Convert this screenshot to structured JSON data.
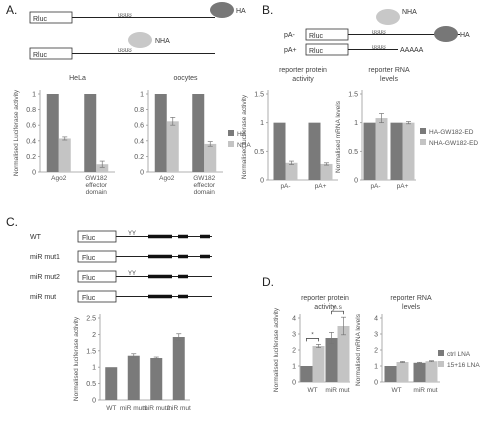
{
  "panels": {
    "A": {
      "label": "A.",
      "constructs": [
        {
          "box": "Rluc",
          "protein": "HA"
        },
        {
          "box": "Rluc",
          "protein": "NHA"
        }
      ]
    },
    "B": {
      "label": "B.",
      "constructs": [
        {
          "name": "pA-",
          "box": "Rluc",
          "protein": "NHA"
        },
        {
          "name": "pA+",
          "box": "Rluc",
          "tail": "AAAAA",
          "protein": "HA"
        }
      ]
    },
    "C": {
      "label": "C.",
      "constructs": [
        {
          "name": "WT",
          "box": "Fluc"
        },
        {
          "name": "miR mut1",
          "box": "Fluc"
        },
        {
          "name": "miR mut2",
          "box": "Fluc"
        },
        {
          "name": "miR mut",
          "box": "Fluc"
        }
      ]
    },
    "D": {
      "label": "D."
    }
  },
  "colors": {
    "dark": "#7a7a7a",
    "light": "#c4c4c4"
  },
  "chart_data": [
    {
      "id": "A1",
      "type": "bar",
      "title": "HeLa",
      "ylabel": "Normalised Luciferase activity",
      "categories": [
        "Ago2",
        "GW182 effector domain"
      ],
      "ylim": [
        0,
        1
      ],
      "yticks": [
        "0",
        "0.2",
        "0.4",
        "0.6",
        "0.8",
        "1"
      ],
      "series": [
        {
          "name": "HA",
          "values": [
            1.0,
            1.0
          ],
          "errors": [
            0,
            0
          ]
        },
        {
          "name": "NHA",
          "values": [
            0.43,
            0.1
          ],
          "errors": [
            0.02,
            0.04
          ]
        }
      ]
    },
    {
      "id": "A2",
      "type": "bar",
      "title": "oocytes",
      "ylabel": "",
      "categories": [
        "Ago2",
        "GW182 effector domain"
      ],
      "ylim": [
        0,
        1
      ],
      "yticks": [
        "0",
        "0.2",
        "0.4",
        "0.6",
        "0.8",
        "1"
      ],
      "legend": [
        "HA",
        "NHA"
      ],
      "series": [
        {
          "name": "HA",
          "values": [
            1.0,
            1.0
          ],
          "errors": [
            0,
            0
          ]
        },
        {
          "name": "NHA",
          "values": [
            0.65,
            0.36
          ],
          "errors": [
            0.05,
            0.03
          ]
        }
      ]
    },
    {
      "id": "B1",
      "type": "bar",
      "title": "reporter protein activity",
      "ylabel": "Normalised luciferase activity",
      "categories": [
        "pA-",
        "pA+"
      ],
      "ylim": [
        0,
        1.5
      ],
      "yticks": [
        "0",
        "0.5",
        "1",
        "1.5"
      ],
      "series": [
        {
          "name": "HA-GW182-ED",
          "values": [
            1.0,
            1.0
          ],
          "errors": [
            0,
            0
          ]
        },
        {
          "name": "NHA-GW182-ED",
          "values": [
            0.3,
            0.28
          ],
          "errors": [
            0.03,
            0.02
          ]
        }
      ]
    },
    {
      "id": "B2",
      "type": "bar",
      "title": "reporter RNA levels",
      "ylabel": "Normalised mRNA levels",
      "categories": [
        "pA-",
        "pA+"
      ],
      "ylim": [
        0,
        1.5
      ],
      "yticks": [
        "0",
        "0.5",
        "1",
        "1.5"
      ],
      "legend": [
        "HA-GW182-ED",
        "NHA-GW182-ED"
      ],
      "series": [
        {
          "name": "HA-GW182-ED",
          "values": [
            1.0,
            1.0
          ],
          "errors": [
            0,
            0
          ]
        },
        {
          "name": "NHA-GW182-ED",
          "values": [
            1.08,
            1.0
          ],
          "errors": [
            0.08,
            0.02
          ]
        }
      ]
    },
    {
      "id": "C1",
      "type": "bar",
      "title": "",
      "ylabel": "Normalised luciferase activity",
      "categories": [
        "WT",
        "miR mut1",
        "miR mut2",
        "miR mut"
      ],
      "ylim": [
        0,
        2.5
      ],
      "yticks": [
        "0",
        "0.5",
        "1",
        "1.5",
        "2",
        "2.5"
      ],
      "series": [
        {
          "name": "",
          "values": [
            1.0,
            1.35,
            1.28,
            1.92
          ],
          "errors": [
            0,
            0.06,
            0.03,
            0.1
          ]
        }
      ]
    },
    {
      "id": "D1",
      "type": "bar",
      "title": "reporter protein activity",
      "ylabel": "Normalised luciferase activity",
      "categories": [
        "WT",
        "miR mut"
      ],
      "ylim": [
        0,
        4
      ],
      "yticks": [
        "0",
        "1",
        "2",
        "3",
        "4"
      ],
      "annotations": [
        "*",
        "n.s"
      ],
      "series": [
        {
          "name": "ctrl LNA",
          "values": [
            1.0,
            2.75
          ],
          "errors": [
            0,
            0.35
          ]
        },
        {
          "name": "15+16 LNA",
          "values": [
            2.25,
            3.5
          ],
          "errors": [
            0.1,
            0.55
          ]
        }
      ]
    },
    {
      "id": "D2",
      "type": "bar",
      "title": "reporter RNA levels",
      "ylabel": "Normalised mRNA levels",
      "categories": [
        "WT",
        "miR mut"
      ],
      "ylim": [
        0,
        4
      ],
      "yticks": [
        "0",
        "1",
        "2",
        "3",
        "4"
      ],
      "legend": [
        "ctrl LNA",
        "15+16 LNA"
      ],
      "series": [
        {
          "name": "ctrl LNA",
          "values": [
            1.0,
            1.2
          ],
          "errors": [
            0,
            0.03
          ]
        },
        {
          "name": "15+16 LNA",
          "values": [
            1.25,
            1.3
          ],
          "errors": [
            0.03,
            0.03
          ]
        }
      ]
    }
  ]
}
